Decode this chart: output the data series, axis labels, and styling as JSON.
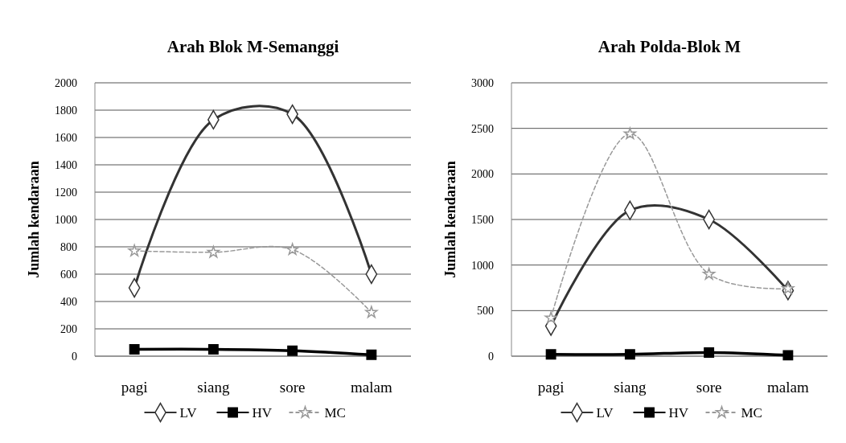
{
  "chart_data": [
    {
      "type": "line",
      "title": "Arah Blok M-Semanggi",
      "ylabel": "Jumlah kendaraan",
      "categories": [
        "pagi",
        "siang",
        "sore",
        "malam"
      ],
      "ylim": [
        0,
        2000
      ],
      "yticks": [
        0,
        200,
        400,
        600,
        800,
        1000,
        1200,
        1400,
        1600,
        1800,
        2000
      ],
      "grid": "y",
      "legend": "bottom",
      "series": [
        {
          "name": "LV",
          "color": "#333333",
          "marker": "diamond",
          "line_style": "solid",
          "values": [
            500,
            1730,
            1770,
            600
          ]
        },
        {
          "name": "HV",
          "color": "#000000",
          "marker": "square",
          "line_style": "solid",
          "values": [
            50,
            50,
            40,
            10
          ]
        },
        {
          "name": "MC",
          "color": "#999999",
          "marker": "star",
          "line_style": "dashed",
          "values": [
            770,
            760,
            780,
            320
          ]
        }
      ]
    },
    {
      "type": "line",
      "title": "Arah Polda-Blok M",
      "ylabel": "Jumlah kendaraan",
      "categories": [
        "pagi",
        "siang",
        "sore",
        "malam"
      ],
      "ylim": [
        0,
        3000
      ],
      "yticks": [
        0,
        500,
        1000,
        1500,
        2000,
        2500,
        3000
      ],
      "grid": "y",
      "legend": "bottom",
      "series": [
        {
          "name": "LV",
          "color": "#333333",
          "marker": "diamond",
          "line_style": "solid",
          "values": [
            330,
            1600,
            1500,
            720
          ]
        },
        {
          "name": "HV",
          "color": "#000000",
          "marker": "square",
          "line_style": "solid",
          "values": [
            20,
            20,
            40,
            10
          ]
        },
        {
          "name": "MC",
          "color": "#999999",
          "marker": "star",
          "line_style": "dashed",
          "values": [
            420,
            2440,
            900,
            740
          ]
        }
      ]
    }
  ]
}
